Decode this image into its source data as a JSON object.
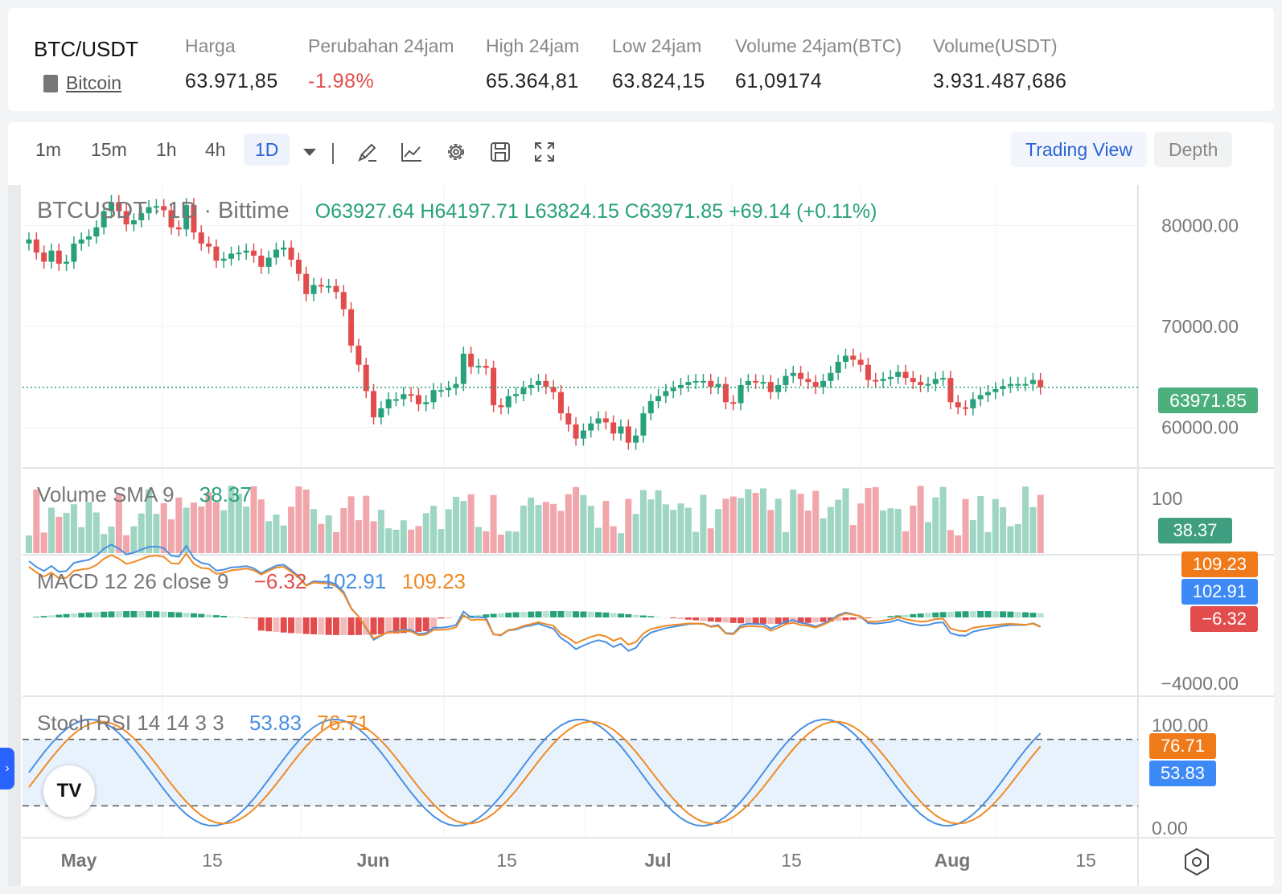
{
  "ticker": {
    "pair": "BTC/USDT",
    "coin_name": "Bitcoin",
    "stats": [
      {
        "label": "Harga",
        "value": "63.971,85",
        "status": "neutral"
      },
      {
        "label": "Perubahan 24jam",
        "value": "-1.98%",
        "status": "down"
      },
      {
        "label": "High 24jam",
        "value": "65.364,81",
        "status": "neutral"
      },
      {
        "label": "Low 24jam",
        "value": "63.824,15",
        "status": "neutral"
      },
      {
        "label": "Volume 24jam(BTC)",
        "value": "61,09174",
        "status": "neutral"
      },
      {
        "label": "Volume(USDT)",
        "value": "3.931.487,686",
        "status": "neutral"
      }
    ]
  },
  "toolbar": {
    "timeframes": [
      "1m",
      "15m",
      "1h",
      "4h",
      "1D"
    ],
    "active_timeframe": "1D",
    "tools": [
      "draw-icon",
      "indicator-icon",
      "gear-icon",
      "save-icon",
      "fullscreen-icon"
    ],
    "view_buttons": [
      "Trading View",
      "Depth"
    ],
    "active_view": "Trading View"
  },
  "legend": {
    "symbol": "BTCUSDT · 1D · Bittime",
    "ohlc": "O63927.64  H64197.71  L63824.15  C63971.85  +69.14 (+0.11%)",
    "volume": {
      "name": "Volume SMA 9",
      "value": "38.37"
    },
    "macd": {
      "name": "MACD 12 26 close 9",
      "hist": "−6.32",
      "macd": "102.91",
      "signal": "109.23"
    },
    "stoch": {
      "name": "Stoch RSI 14 14 3 3",
      "k": "53.83",
      "d": "76.71"
    }
  },
  "axis": {
    "price_ticks": [
      "80000.00",
      "70000.00",
      "60000.00"
    ],
    "last_price": "63971.85",
    "volume_ticks": [
      "100"
    ],
    "volume_tag": "38.37",
    "macd_tags": [
      "109.23",
      "102.91",
      "−6.32"
    ],
    "macd_ticks": [
      "−4000.00"
    ],
    "stoch_ticks": [
      "100.00",
      "0.00"
    ],
    "stoch_tags": [
      "76.71",
      "53.83"
    ],
    "time_labels": [
      "May",
      "15",
      "Jun",
      "15",
      "Jul",
      "15",
      "Aug",
      "15"
    ]
  },
  "colors": {
    "up": "#26a17b",
    "down": "#e24c4c",
    "up_vol": "#9fd5c3",
    "down_vol": "#f0a6aa",
    "macd": "#4a90e2",
    "signal": "#f08a24",
    "accent": "#2a62d6"
  },
  "chart_data": {
    "type": "candlestick",
    "price_range": [
      56000,
      84000
    ],
    "closes": [
      78600,
      77300,
      76400,
      77500,
      76200,
      76400,
      78200,
      78600,
      78900,
      79800,
      81400,
      82300,
      81400,
      80100,
      80500,
      81200,
      81800,
      81900,
      81500,
      79800,
      79600,
      82000,
      79300,
      78200,
      77900,
      76500,
      76700,
      77200,
      77300,
      77500,
      77000,
      75900,
      76800,
      77600,
      77800,
      76600,
      75200,
      73200,
      74100,
      74000,
      74000,
      73400,
      71700,
      68100,
      66200,
      63600,
      61000,
      61900,
      62800,
      62800,
      63300,
      63200,
      62300,
      62500,
      63700,
      63700,
      63900,
      64300,
      67300,
      66000,
      66100,
      65900,
      62200,
      62000,
      63100,
      63300,
      63900,
      64200,
      64600,
      64000,
      63500,
      61400,
      60300,
      58900,
      59700,
      60400,
      60900,
      60500,
      59400,
      60100,
      58500,
      59200,
      61400,
      62600,
      63100,
      63600,
      63900,
      64200,
      64500,
      64600,
      64600,
      64000,
      64300,
      62500,
      62400,
      64200,
      64600,
      64500,
      64500,
      63500,
      64200,
      65100,
      65400,
      64800,
      64500,
      64000,
      64600,
      65400,
      66500,
      67100,
      66700,
      66200,
      64700,
      64600,
      64800,
      65000,
      65500,
      64900,
      64500,
      64200,
      64300,
      64800,
      64900,
      62500,
      62000,
      61900,
      62800,
      63200,
      63500,
      63800,
      64100,
      64300,
      64300,
      64300,
      64700,
      63971.85
    ],
    "volume_sma": 38.37,
    "macd": {
      "hist": -6.32,
      "macd": 102.91,
      "signal": 109.23
    },
    "stoch_rsi": {
      "k": 53.83,
      "d": 76.71,
      "upper": 80,
      "lower": 20
    }
  }
}
